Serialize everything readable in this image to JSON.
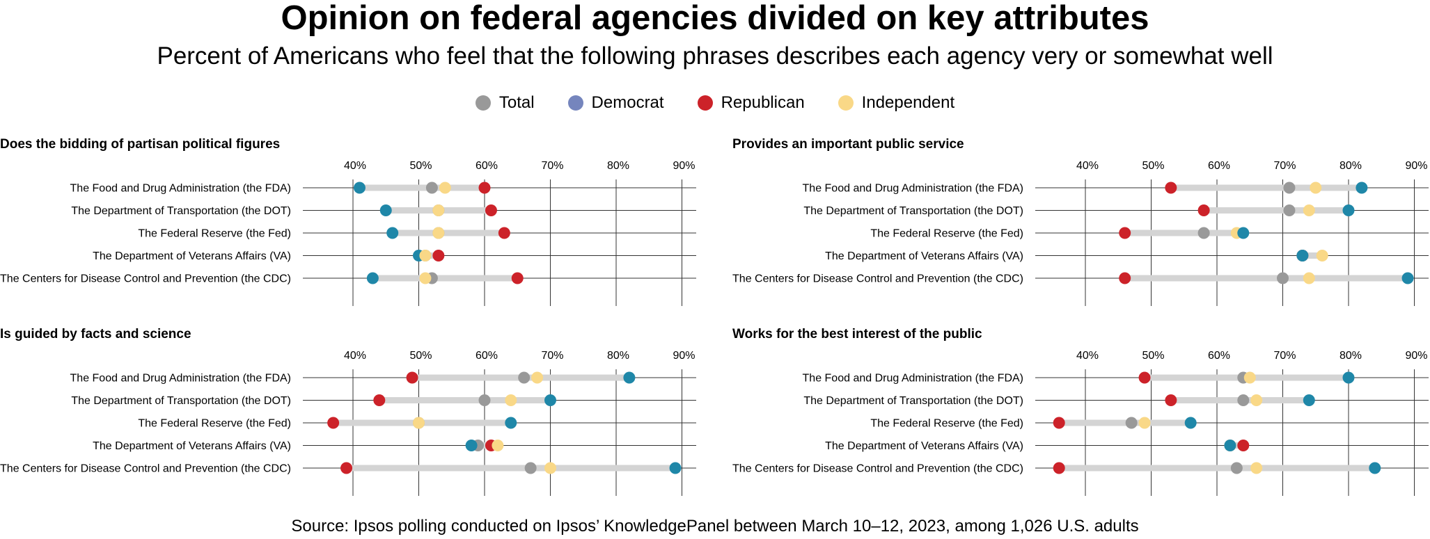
{
  "header": {
    "title": "Opinion on federal agencies divided on key attributes",
    "subtitle": "Percent of Americans who feel that the following phrases describes each agency very or somewhat well"
  },
  "legend": [
    {
      "name": "Total",
      "color": "#999999"
    },
    {
      "name": "Democrat",
      "color": "#7585bd"
    },
    {
      "name": "Republican",
      "color": "#cc2229"
    },
    {
      "name": "Independent",
      "color": "#f9d887"
    }
  ],
  "footer": {
    "source": "Source: Ipsos polling conducted on Ipsos’ KnowledgePanel between March 10–12, 2023, among 1,026 U.S. adults"
  },
  "chart_data": [
    {
      "type": "dot",
      "title": "Does the bidding of partisan political figures",
      "xlim": [
        33,
        92
      ],
      "ticks": [
        40,
        50,
        60,
        70,
        80,
        90
      ],
      "tick_labels": [
        "40%",
        "50%",
        "60%",
        "70%",
        "80%",
        "90%"
      ],
      "categories": [
        "The Food and Drug Administration (the FDA)",
        "The Department of Transportation (the DOT)",
        "The Federal Reserve (the Fed)",
        "The Department of Veterans Affairs (VA)",
        "The Centers for Disease Control and Prevention (the CDC)"
      ],
      "series": [
        {
          "name": "Democrat",
          "color": "#1f87a8",
          "values": [
            41,
            45,
            46,
            50,
            43
          ]
        },
        {
          "name": "Total",
          "color": "#999999",
          "values": [
            52,
            53,
            53,
            51,
            52
          ]
        },
        {
          "name": "Independent",
          "color": "#f9d887",
          "values": [
            54,
            53,
            53,
            51,
            51
          ]
        },
        {
          "name": "Republican",
          "color": "#cc2229",
          "values": [
            60,
            61,
            63,
            53,
            65
          ]
        }
      ]
    },
    {
      "type": "dot",
      "title": "Provides an important public service",
      "xlim": [
        33,
        92
      ],
      "ticks": [
        40,
        50,
        60,
        70,
        80,
        90
      ],
      "tick_labels": [
        "40%",
        "50%",
        "60%",
        "70%",
        "80%",
        "90%"
      ],
      "categories": [
        "The Food and Drug Administration (the FDA)",
        "The Department of Transportation (the DOT)",
        "The Federal Reserve (the Fed)",
        "The Department of Veterans Affairs (VA)",
        "The Centers for Disease Control and Prevention (the CDC)"
      ],
      "series": [
        {
          "name": "Republican",
          "color": "#cc2229",
          "values": [
            53,
            58,
            46,
            73,
            46
          ]
        },
        {
          "name": "Total",
          "color": "#999999",
          "values": [
            71,
            71,
            58,
            73,
            70
          ]
        },
        {
          "name": "Independent",
          "color": "#f9d887",
          "values": [
            75,
            74,
            63,
            76,
            74
          ]
        },
        {
          "name": "Democrat",
          "color": "#1f87a8",
          "values": [
            82,
            80,
            64,
            73,
            89
          ]
        }
      ]
    },
    {
      "type": "dot",
      "title": "Is guided by facts and science",
      "xlim": [
        33,
        92
      ],
      "ticks": [
        40,
        50,
        60,
        70,
        80,
        90
      ],
      "tick_labels": [
        "40%",
        "50%",
        "60%",
        "70%",
        "80%",
        "90%"
      ],
      "categories": [
        "The Food and Drug Administration (the FDA)",
        "The Department of Transportation (the DOT)",
        "The Federal Reserve (the Fed)",
        "The Department of Veterans Affairs (VA)",
        "The Centers for Disease Control and Prevention (the CDC)"
      ],
      "series": [
        {
          "name": "Republican",
          "color": "#cc2229",
          "values": [
            49,
            44,
            37,
            61,
            39
          ]
        },
        {
          "name": "Total",
          "color": "#999999",
          "values": [
            66,
            60,
            50,
            59,
            67
          ]
        },
        {
          "name": "Independent",
          "color": "#f9d887",
          "values": [
            68,
            64,
            50,
            62,
            70
          ]
        },
        {
          "name": "Democrat",
          "color": "#1f87a8",
          "values": [
            82,
            70,
            64,
            58,
            89
          ]
        }
      ]
    },
    {
      "type": "dot",
      "title": "Works for the best interest of the public",
      "xlim": [
        33,
        92
      ],
      "ticks": [
        40,
        50,
        60,
        70,
        80,
        90
      ],
      "tick_labels": [
        "40%",
        "50%",
        "60%",
        "70%",
        "80%",
        "90%"
      ],
      "categories": [
        "The Food and Drug Administration (the FDA)",
        "The Department of Transportation (the DOT)",
        "The Federal Reserve (the Fed)",
        "The Department of Veterans Affairs (VA)",
        "The Centers for Disease Control and Prevention (the CDC)"
      ],
      "series": [
        {
          "name": "Republican",
          "color": "#cc2229",
          "values": [
            49,
            53,
            36,
            64,
            36
          ]
        },
        {
          "name": "Total",
          "color": "#999999",
          "values": [
            64,
            64,
            47,
            62,
            63
          ]
        },
        {
          "name": "Independent",
          "color": "#f9d887",
          "values": [
            65,
            66,
            49,
            62,
            66
          ]
        },
        {
          "name": "Democrat",
          "color": "#1f87a8",
          "values": [
            80,
            74,
            56,
            62,
            84
          ]
        }
      ]
    }
  ]
}
